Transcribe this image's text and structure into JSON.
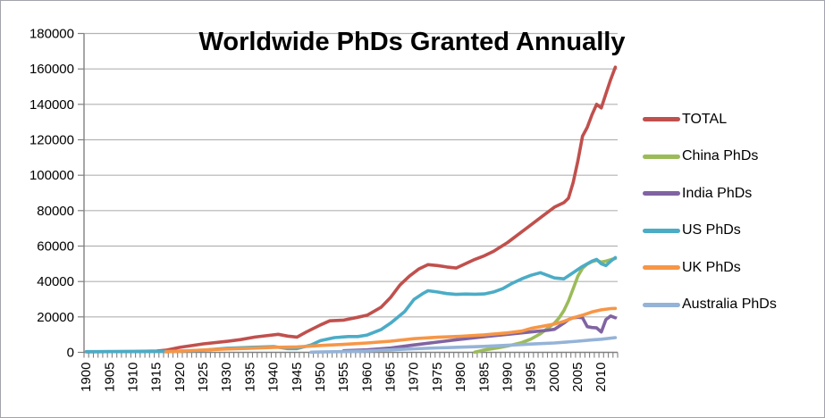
{
  "frame": {
    "background": "#ffffff",
    "border_color": "#a3a3ab"
  },
  "title": "Worldwide PhDs Granted Annually",
  "legend": {
    "position": "right",
    "items": [
      {
        "label": "TOTAL",
        "color": "#C0504D"
      },
      {
        "label": "China PhDs",
        "color": "#9BBB59"
      },
      {
        "label": "India PhDs",
        "color": "#8064A2"
      },
      {
        "label": "US PhDs",
        "color": "#4BACC6"
      },
      {
        "label": "UK PhDs",
        "color": "#F79646"
      },
      {
        "label": "Australia PhDs",
        "color": "#95B3D7"
      }
    ]
  },
  "chart_data": {
    "type": "line",
    "title": "Worldwide PhDs Granted Annually",
    "xlabel": "",
    "ylabel": "",
    "xlim": [
      1900,
      2013
    ],
    "ylim": [
      0,
      180000
    ],
    "grid": "horizontal-on",
    "legend_position": "right",
    "axis_color": "#808080",
    "gridline_color": "#b3b3b3",
    "y_ticks": [
      0,
      20000,
      40000,
      60000,
      80000,
      100000,
      120000,
      140000,
      160000,
      180000
    ],
    "y_tick_labels": [
      "0",
      "20000",
      "40000",
      "60000",
      "80000",
      "100000",
      "120000",
      "140000",
      "160000",
      "180000"
    ],
    "x_labeled_ticks": [
      1900,
      1905,
      1910,
      1915,
      1920,
      1925,
      1930,
      1935,
      1940,
      1945,
      1950,
      1955,
      1960,
      1965,
      1970,
      1975,
      1980,
      1985,
      1990,
      1995,
      2000,
      2005,
      2010
    ],
    "x_tick_labels": [
      "1900",
      "1905",
      "1910",
      "1915",
      "1920",
      "1925",
      "1930",
      "1935",
      "1940",
      "1945",
      "1950",
      "1955",
      "1960",
      "1965",
      "1970",
      "1975",
      "1980",
      "1985",
      "1990",
      "1995",
      "2000",
      "2005",
      "2010"
    ],
    "x_minor_tick_every_years": 1,
    "series": [
      {
        "name": "TOTAL",
        "color": "#C0504D",
        "points": [
          [
            1900,
            300
          ],
          [
            1905,
            400
          ],
          [
            1910,
            500
          ],
          [
            1915,
            700
          ],
          [
            1917,
            1200
          ],
          [
            1920,
            2800
          ],
          [
            1925,
            4800
          ],
          [
            1930,
            6200
          ],
          [
            1933,
            7200
          ],
          [
            1936,
            8600
          ],
          [
            1938,
            9300
          ],
          [
            1941,
            10200
          ],
          [
            1943,
            9200
          ],
          [
            1945,
            8600
          ],
          [
            1947,
            11500
          ],
          [
            1950,
            15500
          ],
          [
            1952,
            17800
          ],
          [
            1955,
            18200
          ],
          [
            1958,
            19800
          ],
          [
            1960,
            21000
          ],
          [
            1963,
            25500
          ],
          [
            1965,
            31000
          ],
          [
            1967,
            38000
          ],
          [
            1969,
            43000
          ],
          [
            1971,
            47000
          ],
          [
            1973,
            49500
          ],
          [
            1975,
            49000
          ],
          [
            1977,
            48200
          ],
          [
            1979,
            47600
          ],
          [
            1981,
            50000
          ],
          [
            1983,
            52500
          ],
          [
            1985,
            54500
          ],
          [
            1987,
            57000
          ],
          [
            1990,
            62000
          ],
          [
            1993,
            68000
          ],
          [
            1996,
            74000
          ],
          [
            1998,
            78000
          ],
          [
            2000,
            82000
          ],
          [
            2002,
            84500
          ],
          [
            2003,
            87000
          ],
          [
            2004,
            96000
          ],
          [
            2005,
            108000
          ],
          [
            2006,
            122000
          ],
          [
            2007,
            127000
          ],
          [
            2008,
            134000
          ],
          [
            2009,
            140000
          ],
          [
            2010,
            138000
          ],
          [
            2011,
            146000
          ],
          [
            2012,
            154000
          ],
          [
            2013,
            161000
          ]
        ]
      },
      {
        "name": "China PhDs",
        "color": "#9BBB59",
        "points": [
          [
            1983,
            100
          ],
          [
            1985,
            1300
          ],
          [
            1988,
            2600
          ],
          [
            1990,
            3600
          ],
          [
            1993,
            5500
          ],
          [
            1995,
            7500
          ],
          [
            1997,
            10500
          ],
          [
            1999,
            14500
          ],
          [
            2000,
            16500
          ],
          [
            2001,
            19500
          ],
          [
            2002,
            23500
          ],
          [
            2003,
            29000
          ],
          [
            2004,
            36000
          ],
          [
            2005,
            43000
          ],
          [
            2006,
            47500
          ],
          [
            2007,
            49800
          ],
          [
            2008,
            51200
          ],
          [
            2009,
            52000
          ],
          [
            2010,
            51000
          ],
          [
            2011,
            51500
          ],
          [
            2012,
            52300
          ],
          [
            2013,
            53000
          ]
        ]
      },
      {
        "name": "India PhDs",
        "color": "#8064A2",
        "points": [
          [
            1955,
            900
          ],
          [
            1960,
            1400
          ],
          [
            1965,
            2400
          ],
          [
            1970,
            4200
          ],
          [
            1975,
            5800
          ],
          [
            1980,
            7400
          ],
          [
            1985,
            8800
          ],
          [
            1990,
            10200
          ],
          [
            1993,
            11000
          ],
          [
            1996,
            11800
          ],
          [
            1998,
            12300
          ],
          [
            2000,
            13000
          ],
          [
            2002,
            16500
          ],
          [
            2003,
            18500
          ],
          [
            2004,
            19500
          ],
          [
            2005,
            19800
          ],
          [
            2006,
            19500
          ],
          [
            2007,
            14500
          ],
          [
            2008,
            14000
          ],
          [
            2009,
            13800
          ],
          [
            2010,
            11500
          ],
          [
            2011,
            18500
          ],
          [
            2012,
            20500
          ],
          [
            2013,
            19500
          ]
        ]
      },
      {
        "name": "US PhDs",
        "color": "#4BACC6",
        "points": [
          [
            1900,
            400
          ],
          [
            1905,
            400
          ],
          [
            1910,
            450
          ],
          [
            1915,
            550
          ],
          [
            1920,
            650
          ],
          [
            1925,
            1200
          ],
          [
            1930,
            2300
          ],
          [
            1935,
            2800
          ],
          [
            1940,
            3300
          ],
          [
            1943,
            2100
          ],
          [
            1945,
            2100
          ],
          [
            1948,
            4200
          ],
          [
            1950,
            6600
          ],
          [
            1953,
            8300
          ],
          [
            1956,
            8900
          ],
          [
            1958,
            8900
          ],
          [
            1960,
            9800
          ],
          [
            1963,
            12900
          ],
          [
            1965,
            16500
          ],
          [
            1968,
            23000
          ],
          [
            1970,
            29900
          ],
          [
            1972,
            33400
          ],
          [
            1973,
            34800
          ],
          [
            1975,
            34100
          ],
          [
            1977,
            33200
          ],
          [
            1979,
            32700
          ],
          [
            1981,
            32900
          ],
          [
            1983,
            32800
          ],
          [
            1985,
            33000
          ],
          [
            1987,
            34100
          ],
          [
            1989,
            36000
          ],
          [
            1991,
            39000
          ],
          [
            1993,
            41500
          ],
          [
            1995,
            43500
          ],
          [
            1997,
            45000
          ],
          [
            2000,
            42000
          ],
          [
            2002,
            41500
          ],
          [
            2004,
            45000
          ],
          [
            2006,
            48500
          ],
          [
            2008,
            51500
          ],
          [
            2009,
            52500
          ],
          [
            2010,
            50000
          ],
          [
            2011,
            49000
          ],
          [
            2012,
            51500
          ],
          [
            2013,
            53500
          ]
        ]
      },
      {
        "name": "UK PhDs",
        "color": "#F79646",
        "points": [
          [
            1917,
            300
          ],
          [
            1920,
            700
          ],
          [
            1925,
            1300
          ],
          [
            1930,
            1900
          ],
          [
            1935,
            2300
          ],
          [
            1940,
            2800
          ],
          [
            1945,
            3100
          ],
          [
            1950,
            3900
          ],
          [
            1955,
            4500
          ],
          [
            1960,
            5300
          ],
          [
            1965,
            6300
          ],
          [
            1970,
            7700
          ],
          [
            1975,
            8500
          ],
          [
            1980,
            9100
          ],
          [
            1985,
            9900
          ],
          [
            1990,
            11000
          ],
          [
            1993,
            12000
          ],
          [
            1995,
            13500
          ],
          [
            1998,
            15000
          ],
          [
            2000,
            16000
          ],
          [
            2002,
            17500
          ],
          [
            2004,
            19500
          ],
          [
            2006,
            21000
          ],
          [
            2008,
            22800
          ],
          [
            2010,
            24000
          ],
          [
            2012,
            24700
          ],
          [
            2013,
            24800
          ]
        ]
      },
      {
        "name": "Australia PhDs",
        "color": "#95B3D7",
        "points": [
          [
            1948,
            100
          ],
          [
            1950,
            200
          ],
          [
            1955,
            450
          ],
          [
            1960,
            800
          ],
          [
            1965,
            1400
          ],
          [
            1970,
            2000
          ],
          [
            1975,
            2500
          ],
          [
            1980,
            2900
          ],
          [
            1985,
            3400
          ],
          [
            1990,
            4000
          ],
          [
            1995,
            4700
          ],
          [
            2000,
            5300
          ],
          [
            2005,
            6300
          ],
          [
            2008,
            7000
          ],
          [
            2010,
            7400
          ],
          [
            2013,
            8300
          ]
        ]
      }
    ]
  }
}
